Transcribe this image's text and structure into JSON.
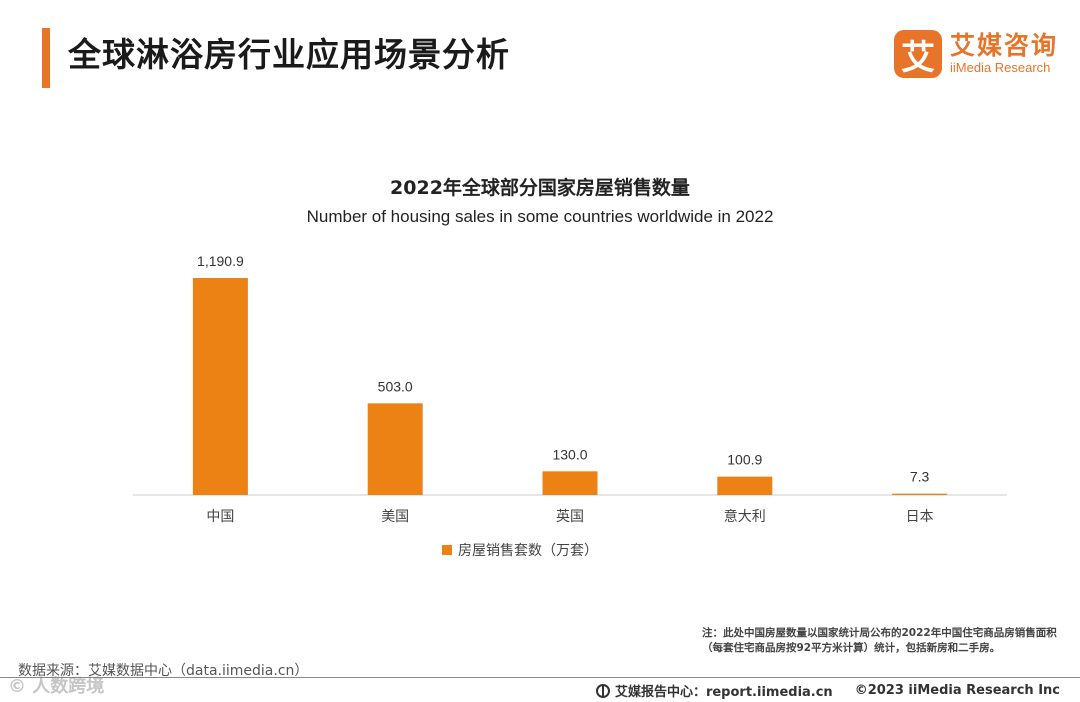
{
  "header": {
    "title": "全球淋浴房行业应用场景分析",
    "logo_mark": "艾",
    "logo_cn": "艾媒咨询",
    "logo_en": "iiMedia Research"
  },
  "colors": {
    "accent": "#e8742a",
    "bar": "#ec8213",
    "axis": "#cccccc"
  },
  "chart_data": {
    "type": "bar",
    "title": "2022年全球部分国家房屋销售数量",
    "subtitle": "Number of housing sales in some countries worldwide in 2022",
    "categories": [
      "中国",
      "美国",
      "英国",
      "意大利",
      "日本"
    ],
    "values": [
      1190.9,
      503.0,
      130.0,
      100.9,
      7.3
    ],
    "value_labels": [
      "1,190.9",
      "503.0",
      "130.0",
      "100.9",
      "7.3"
    ],
    "series_name": "房屋销售套数（万套）",
    "ylim": [
      0,
      1190.9
    ],
    "legend_position": "bottom"
  },
  "note": "注：此处中国房屋数量以国家统计局公布的2022年中国住宅商品房销售面积（每套住宅商品房按92平方米计算）统计，包括新房和二手房。",
  "source": "数据来源：艾媒数据中心（data.iimedia.cn）",
  "footer": {
    "report_center": "艾媒报告中心：report.iimedia.cn",
    "copyright": "©2023  iiMedia Research  Inc"
  },
  "watermark": "© 人数跨境"
}
